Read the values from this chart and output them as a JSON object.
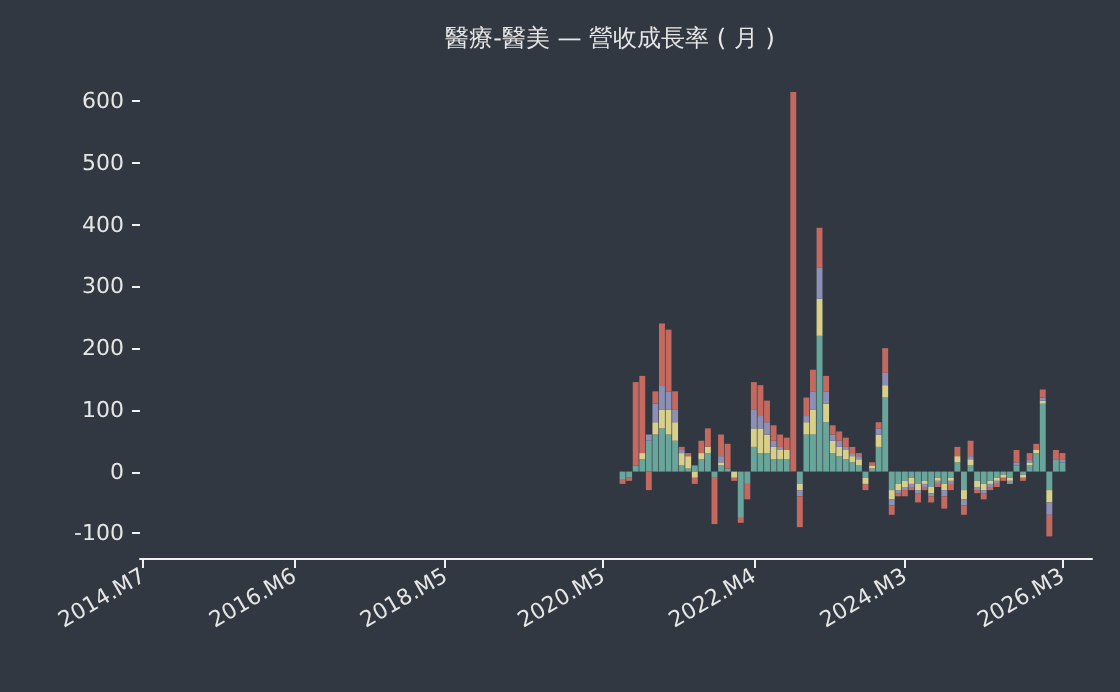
{
  "chart_data": {
    "type": "bar",
    "title": "醫療-醫美 — 營收成長率 ( 月 )",
    "stacked": true,
    "grid": false,
    "categories": [
      "2014.M7",
      null,
      null,
      null,
      null,
      null,
      null,
      null,
      null,
      null,
      null,
      null,
      null,
      null,
      null,
      null,
      null,
      null,
      null,
      null,
      null,
      null,
      null,
      "2016.M6",
      null,
      null,
      null,
      null,
      null,
      null,
      null,
      null,
      null,
      null,
      null,
      null,
      null,
      null,
      null,
      null,
      null,
      null,
      null,
      null,
      null,
      null,
      "2018.M5",
      null,
      null,
      null,
      null,
      null,
      null,
      null,
      null,
      null,
      null,
      null,
      null,
      null,
      null,
      null,
      null,
      null,
      null,
      null,
      null,
      null,
      null,
      null,
      "2020.M5",
      null,
      null,
      null,
      null,
      null,
      null,
      null,
      null,
      null,
      null,
      null,
      null,
      null,
      null,
      null,
      null,
      null,
      null,
      null,
      null,
      null,
      null,
      "2022.M4",
      null,
      null,
      null,
      null,
      null,
      null,
      null,
      null,
      null,
      null,
      null,
      null,
      null,
      null,
      null,
      null,
      null,
      null,
      null,
      null,
      null,
      null,
      "2024.M3",
      null,
      null,
      null,
      null,
      null,
      null,
      null,
      null,
      null,
      null,
      null,
      null,
      null,
      null,
      null,
      null,
      null,
      null,
      null,
      null,
      null,
      null,
      null,
      "2026.M3",
      null,
      null,
      null,
      null
    ],
    "series": [
      {
        "color": "#6aa59b",
        "values": [
          null,
          null,
          null,
          null,
          null,
          null,
          null,
          null,
          null,
          null,
          null,
          null,
          null,
          null,
          null,
          null,
          null,
          null,
          null,
          null,
          null,
          null,
          null,
          null,
          null,
          null,
          null,
          null,
          null,
          null,
          null,
          null,
          null,
          null,
          null,
          null,
          null,
          null,
          null,
          null,
          null,
          null,
          null,
          null,
          null,
          null,
          null,
          null,
          null,
          null,
          null,
          null,
          null,
          null,
          null,
          null,
          null,
          null,
          null,
          null,
          null,
          null,
          null,
          null,
          null,
          null,
          null,
          null,
          null,
          null,
          null,
          null,
          null,
          -12,
          -10,
          10,
          20,
          50,
          60,
          70,
          60,
          50,
          10,
          5,
          10,
          20,
          30,
          -10,
          10,
          5,
          0,
          -75,
          -20,
          40,
          30,
          30,
          20,
          20,
          20,
          0,
          -20,
          60,
          60,
          220,
          80,
          30,
          25,
          20,
          15,
          10,
          -10,
          5,
          40,
          120,
          -30,
          -20,
          -15,
          -10,
          -20,
          -15,
          -25,
          -10,
          -20,
          -10,
          15,
          -30,
          10,
          -15,
          -20,
          -15,
          -10,
          -5,
          -10,
          10,
          -5,
          10,
          30,
          110,
          -30,
          20,
          15,
          null,
          null,
          null,
          null
        ]
      },
      {
        "color": "#d8cf8a",
        "values": [
          null,
          null,
          null,
          null,
          null,
          null,
          null,
          null,
          null,
          null,
          null,
          null,
          null,
          null,
          null,
          null,
          null,
          null,
          null,
          null,
          null,
          null,
          null,
          null,
          null,
          null,
          null,
          null,
          null,
          null,
          null,
          null,
          null,
          null,
          null,
          null,
          null,
          null,
          null,
          null,
          null,
          null,
          null,
          null,
          null,
          null,
          null,
          null,
          null,
          null,
          null,
          null,
          null,
          null,
          null,
          null,
          null,
          null,
          null,
          null,
          null,
          null,
          null,
          null,
          null,
          null,
          null,
          null,
          null,
          null,
          null,
          null,
          null,
          0,
          0,
          0,
          10,
          0,
          20,
          30,
          40,
          30,
          20,
          20,
          -10,
          10,
          10,
          0,
          5,
          0,
          -10,
          0,
          0,
          30,
          40,
          30,
          20,
          15,
          15,
          0,
          -10,
          20,
          40,
          60,
          30,
          20,
          15,
          15,
          10,
          10,
          -10,
          5,
          20,
          20,
          -15,
          -10,
          -10,
          -10,
          -10,
          -5,
          -10,
          -5,
          -10,
          -5,
          10,
          -15,
          10,
          -10,
          -10,
          -5,
          -5,
          -5,
          -5,
          0,
          -5,
          5,
          5,
          5,
          -20,
          0,
          0,
          null,
          null,
          null,
          null
        ]
      },
      {
        "color": "#8e8fb5",
        "values": [
          null,
          null,
          null,
          null,
          null,
          null,
          null,
          null,
          null,
          null,
          null,
          null,
          null,
          null,
          null,
          null,
          null,
          null,
          null,
          null,
          null,
          null,
          null,
          null,
          null,
          null,
          null,
          null,
          null,
          null,
          null,
          null,
          null,
          null,
          null,
          null,
          null,
          null,
          null,
          null,
          null,
          null,
          null,
          null,
          null,
          null,
          null,
          null,
          null,
          null,
          null,
          null,
          null,
          null,
          null,
          null,
          null,
          null,
          null,
          null,
          null,
          null,
          null,
          null,
          null,
          null,
          null,
          null,
          null,
          null,
          null,
          null,
          null,
          0,
          0,
          0,
          0,
          10,
          30,
          40,
          30,
          20,
          5,
          0,
          0,
          0,
          0,
          0,
          10,
          0,
          0,
          0,
          0,
          30,
          20,
          20,
          10,
          5,
          0,
          0,
          -10,
          10,
          30,
          50,
          20,
          10,
          10,
          5,
          5,
          5,
          0,
          0,
          10,
          20,
          -10,
          -5,
          -5,
          -5,
          -5,
          -5,
          -5,
          -5,
          -10,
          -5,
          0,
          -10,
          5,
          -5,
          -5,
          -5,
          -5,
          0,
          -5,
          5,
          0,
          5,
          0,
          5,
          -20,
          0,
          5,
          null,
          null,
          null,
          null
        ]
      },
      {
        "color": "#c4695f",
        "values": [
          null,
          null,
          null,
          null,
          null,
          null,
          null,
          null,
          null,
          null,
          null,
          null,
          null,
          null,
          null,
          null,
          null,
          null,
          null,
          null,
          null,
          null,
          null,
          null,
          null,
          null,
          null,
          null,
          null,
          null,
          null,
          null,
          null,
          null,
          null,
          null,
          null,
          null,
          null,
          null,
          null,
          null,
          null,
          null,
          null,
          null,
          null,
          null,
          null,
          null,
          null,
          null,
          null,
          null,
          null,
          null,
          null,
          null,
          null,
          null,
          null,
          null,
          null,
          null,
          null,
          null,
          null,
          null,
          null,
          null,
          null,
          null,
          null,
          -8,
          -5,
          135,
          125,
          -30,
          20,
          100,
          100,
          30,
          5,
          5,
          -10,
          20,
          30,
          -75,
          35,
          40,
          -5,
          -8,
          -25,
          45,
          50,
          35,
          25,
          20,
          20,
          615,
          -50,
          30,
          35,
          65,
          25,
          15,
          15,
          15,
          10,
          5,
          -10,
          5,
          10,
          40,
          -15,
          -5,
          -10,
          -5,
          -15,
          -5,
          -10,
          -5,
          -20,
          -10,
          15,
          -15,
          25,
          -5,
          -10,
          -5,
          -5,
          -5,
          0,
          20,
          -5,
          10,
          10,
          13,
          -35,
          15,
          10,
          null,
          null,
          null,
          null
        ]
      }
    ],
    "ylim": [
      -140,
      615
    ],
    "yticks": [
      -100,
      0,
      100,
      200,
      300,
      400,
      500,
      600
    ]
  }
}
